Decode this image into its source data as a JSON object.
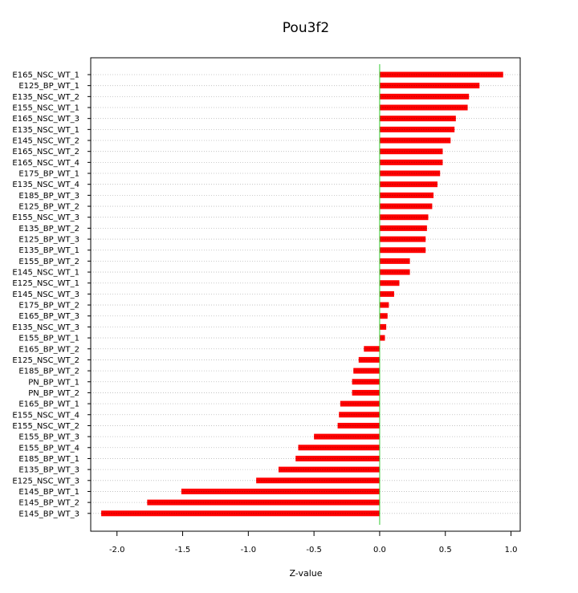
{
  "chart_data": {
    "type": "bar",
    "orientation": "horizontal",
    "title": "Pou3f2",
    "xlabel": "Z-value",
    "ylabel": "",
    "xlim": [
      -2.2,
      1.07
    ],
    "xticks": [
      -2.0,
      -1.5,
      -1.0,
      -0.5,
      0.0,
      0.5,
      1.0
    ],
    "xtick_labels": [
      "-2.0",
      "-1.5",
      "-1.0",
      "-0.5",
      "0.0",
      "0.5",
      "1.0"
    ],
    "grid": "horizontal dotted",
    "reference_line": 0.0,
    "colors": {
      "bar": "#ff0000",
      "bar_stripe": "#cc0000",
      "zero_line": "#33cc33",
      "grid": "#bbbbbb",
      "axis": "#000000"
    },
    "categories": [
      "E165_NSC_WT_1",
      "E125_BP_WT_1",
      "E135_NSC_WT_2",
      "E155_NSC_WT_1",
      "E165_NSC_WT_3",
      "E135_NSC_WT_1",
      "E145_NSC_WT_2",
      "E165_NSC_WT_2",
      "E165_NSC_WT_4",
      "E175_BP_WT_1",
      "E135_NSC_WT_4",
      "E185_BP_WT_3",
      "E125_BP_WT_2",
      "E155_NSC_WT_3",
      "E135_BP_WT_2",
      "E125_BP_WT_3",
      "E135_BP_WT_1",
      "E155_BP_WT_2",
      "E145_NSC_WT_1",
      "E125_NSC_WT_1",
      "E145_NSC_WT_3",
      "E175_BP_WT_2",
      "E165_BP_WT_3",
      "E135_NSC_WT_3",
      "E155_BP_WT_1",
      "E165_BP_WT_2",
      "E125_NSC_WT_2",
      "E185_BP_WT_2",
      "PN_BP_WT_1",
      "PN_BP_WT_2",
      "E165_BP_WT_1",
      "E155_NSC_WT_4",
      "E155_NSC_WT_2",
      "E155_BP_WT_3",
      "E155_BP_WT_4",
      "E185_BP_WT_1",
      "E135_BP_WT_3",
      "E125_NSC_WT_3",
      "E145_BP_WT_1",
      "E145_BP_WT_2",
      "E145_BP_WT_3"
    ],
    "values": [
      0.94,
      0.76,
      0.68,
      0.67,
      0.58,
      0.57,
      0.54,
      0.48,
      0.48,
      0.46,
      0.44,
      0.41,
      0.4,
      0.37,
      0.36,
      0.35,
      0.35,
      0.23,
      0.23,
      0.15,
      0.11,
      0.07,
      0.06,
      0.05,
      0.04,
      -0.12,
      -0.16,
      -0.2,
      -0.21,
      -0.21,
      -0.3,
      -0.31,
      -0.32,
      -0.5,
      -0.62,
      -0.64,
      -0.77,
      -0.94,
      -1.51,
      -1.77,
      -2.12
    ]
  }
}
